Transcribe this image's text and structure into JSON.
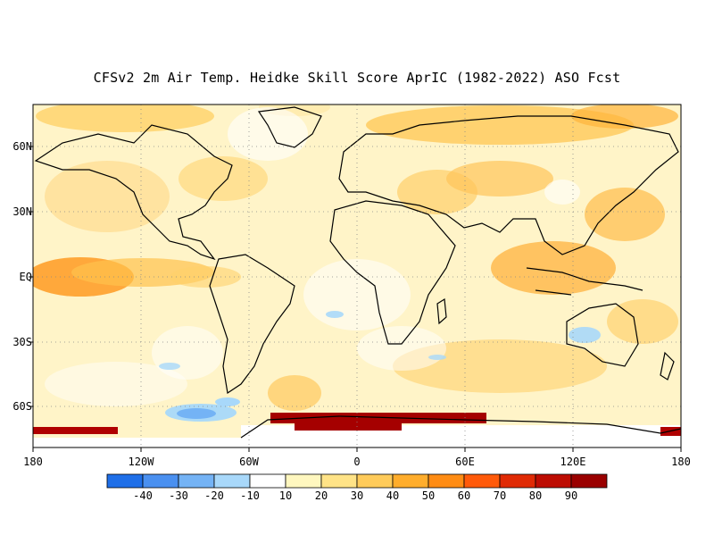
{
  "title": "CFSv2 2m Air Temp. Heidke Skill Score AprIC (1982-2022) ASO Fcst",
  "lat_labels": [
    "60N",
    "30N",
    "EQ",
    "30S",
    "60S"
  ],
  "lon_labels": [
    "180",
    "120W",
    "60W",
    "0",
    "60E",
    "120E",
    "180"
  ],
  "colorbar": {
    "labels": [
      "-40",
      "-30",
      "-20",
      "-10",
      "10",
      "20",
      "30",
      "40",
      "50",
      "60",
      "70",
      "80",
      "90"
    ],
    "colors": [
      "#1f6fe8",
      "#4a90f0",
      "#74b3f5",
      "#a8d8fa",
      "#ffffff",
      "#fff7bf",
      "#ffe387",
      "#ffcb5a",
      "#ffad2c",
      "#ff8c14",
      "#ff5a0a",
      "#e02a05",
      "#bd0c02",
      "#9a0000"
    ]
  },
  "palette": {
    "land_outline": "#000000",
    "background": "#fff9df"
  }
}
